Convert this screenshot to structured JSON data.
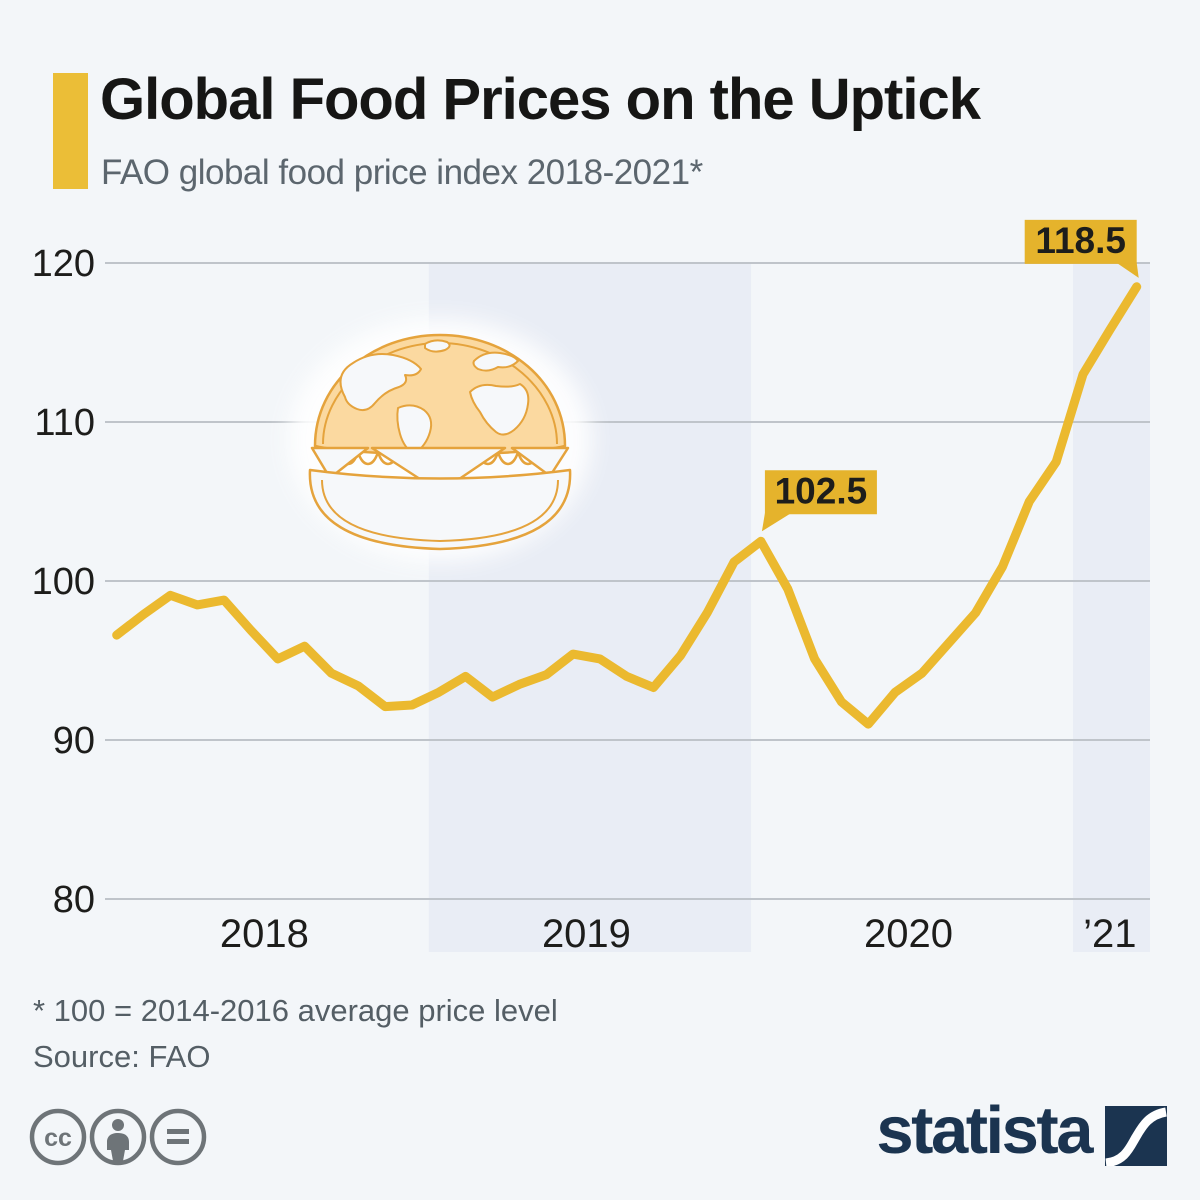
{
  "header": {
    "title": "Global Food Prices on the Uptick",
    "subtitle": "FAO global food price index 2018-2021*"
  },
  "chart_data": {
    "type": "line",
    "title": "FAO global food price index 2018-2021",
    "xlabel": "",
    "ylabel": "",
    "x": [
      "Jan 2018",
      "Feb 2018",
      "Mar 2018",
      "Apr 2018",
      "May 2018",
      "Jun 2018",
      "Jul 2018",
      "Aug 2018",
      "Sep 2018",
      "Oct 2018",
      "Nov 2018",
      "Dec 2018",
      "Jan 2019",
      "Feb 2019",
      "Mar 2019",
      "Apr 2019",
      "May 2019",
      "Jun 2019",
      "Jul 2019",
      "Aug 2019",
      "Sep 2019",
      "Oct 2019",
      "Nov 2019",
      "Dec 2019",
      "Jan 2020",
      "Feb 2020",
      "Mar 2020",
      "Apr 2020",
      "May 2020",
      "Jun 2020",
      "Jul 2020",
      "Aug 2020",
      "Sep 2020",
      "Oct 2020",
      "Nov 2020",
      "Dec 2020",
      "Jan 2021",
      "Feb 2021",
      "Mar 2021"
    ],
    "values": [
      96.6,
      97.9,
      99.1,
      98.5,
      98.8,
      96.9,
      95.1,
      95.9,
      94.2,
      93.4,
      92.1,
      92.2,
      93.0,
      94.0,
      92.7,
      93.5,
      94.1,
      95.4,
      95.1,
      94.0,
      93.3,
      95.3,
      98.0,
      101.2,
      102.5,
      99.5,
      95.1,
      92.4,
      91.0,
      93.0,
      94.2,
      96.1,
      98.0,
      100.9,
      105.0,
      107.5,
      113.0,
      115.8,
      118.5
    ],
    "y_ticks": [
      80,
      90,
      100,
      110,
      120
    ],
    "ylim": [
      80,
      122
    ],
    "grid": true,
    "legend": false,
    "year_axis_labels": [
      "2018",
      "2019",
      "2020",
      "’21"
    ],
    "shaded_years": [
      "2019",
      "2021"
    ],
    "annotations": [
      {
        "x": "Jan 2020",
        "value": 102.5,
        "label": "102.5",
        "tail": "bottom-left"
      },
      {
        "x": "Mar 2021",
        "value": 118.5,
        "label": "118.5",
        "tail": "bottom-right"
      }
    ],
    "line_color": "#ebb92f",
    "callout_color": "#e5b32c",
    "band_color": "#e9edf5",
    "grid_color": "#bfc4ca"
  },
  "footer": {
    "footnote": "* 100 = 2014-2016 average price level",
    "source": "Source: FAO"
  },
  "branding": {
    "logo_text": "statista",
    "cc_icons": [
      "cc",
      "by",
      "nd"
    ]
  }
}
